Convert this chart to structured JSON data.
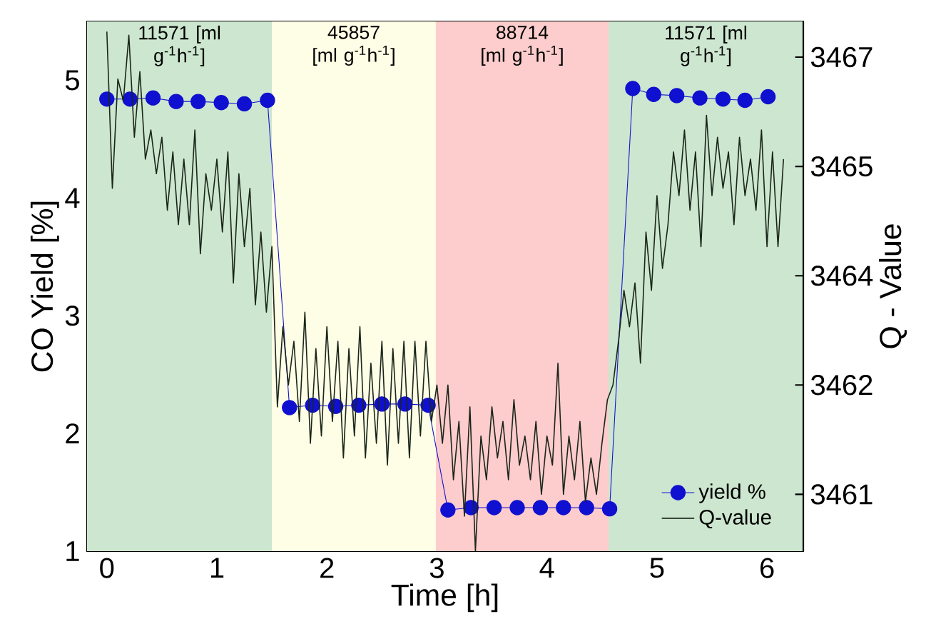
{
  "chart_data": {
    "type": "line",
    "xlabel": "Time [h]",
    "ylabel": "CO Yield [%]",
    "y2label": "Q - Value",
    "xlim": [
      -0.18,
      6.33
    ],
    "xticks": [
      0,
      1,
      2,
      3,
      4,
      5,
      6
    ],
    "ylim": [
      1,
      5.5
    ],
    "yticks": [
      1,
      2,
      3,
      4,
      5
    ],
    "y2lim": [
      3460.12,
      3467.39
    ],
    "y2ticks": [
      {
        "value": 3460.9,
        "label": "3461"
      },
      {
        "value": 3462.4,
        "label": "3462"
      },
      {
        "value": 3463.9,
        "label": "3464"
      },
      {
        "value": 3465.4,
        "label": "3465"
      },
      {
        "value": 3466.9,
        "label": "3467"
      }
    ],
    "legend": "bottom right",
    "bands": [
      {
        "axis": "x",
        "from": -0.18,
        "to": 1.5,
        "label": "11571 [ml g$^{-1}$h$^{-1}$]",
        "color": "#cde6cf"
      },
      {
        "axis": "x",
        "from": 1.5,
        "to": 2.99,
        "label": "45857 [ml g$^{-1}$h$^{-1}$]",
        "color": "#fefee6"
      },
      {
        "axis": "x",
        "from": 2.99,
        "to": 4.56,
        "label": "88714 [ml g$^{-1}$h$^{-1}$]",
        "color": "#fdcccc"
      },
      {
        "axis": "x",
        "from": 4.56,
        "to": 6.33,
        "label": "11571 [ml g$^{-1}$h$^{-1}$]",
        "color": "#cde6cf"
      }
    ],
    "series": [
      {
        "name": "yield %",
        "type": "line",
        "marker": "circle",
        "color": "#1010d0",
        "x": [
          0,
          0.21,
          0.42,
          0.63,
          0.83,
          1.04,
          1.25,
          1.46,
          1.66,
          1.87,
          2.08,
          2.29,
          2.5,
          2.71,
          2.92,
          3.1,
          3.31,
          3.52,
          3.73,
          3.94,
          4.15,
          4.36,
          4.57,
          4.78,
          4.97,
          5.18,
          5.39,
          5.6,
          5.8,
          6.01
        ],
        "values": [
          4.84,
          4.84,
          4.85,
          4.82,
          4.82,
          4.81,
          4.8,
          4.83,
          2.22,
          2.24,
          2.23,
          2.24,
          2.25,
          2.25,
          2.24,
          1.35,
          1.37,
          1.37,
          1.37,
          1.37,
          1.37,
          1.37,
          1.36,
          4.93,
          4.88,
          4.87,
          4.85,
          4.84,
          4.83,
          4.86
        ]
      },
      {
        "name": "Q-value",
        "type": "line",
        "axis": "y2",
        "color": "#1a261a",
        "x": [
          0,
          0.05,
          0.1,
          0.15,
          0.2,
          0.25,
          0.3,
          0.35,
          0.4,
          0.45,
          0.5,
          0.55,
          0.6,
          0.65,
          0.7,
          0.75,
          0.8,
          0.85,
          0.9,
          0.95,
          1.0,
          1.05,
          1.1,
          1.15,
          1.2,
          1.25,
          1.3,
          1.35,
          1.4,
          1.45,
          1.5,
          1.55,
          1.6,
          1.65,
          1.7,
          1.75,
          1.8,
          1.85,
          1.9,
          1.95,
          2.0,
          2.05,
          2.1,
          2.15,
          2.2,
          2.25,
          2.3,
          2.35,
          2.4,
          2.45,
          2.5,
          2.55,
          2.6,
          2.65,
          2.7,
          2.75,
          2.8,
          2.85,
          2.9,
          2.95,
          3.0,
          3.05,
          3.1,
          3.15,
          3.2,
          3.25,
          3.3,
          3.35,
          3.4,
          3.45,
          3.5,
          3.55,
          3.6,
          3.65,
          3.7,
          3.75,
          3.8,
          3.85,
          3.9,
          3.95,
          4.0,
          4.05,
          4.1,
          4.15,
          4.2,
          4.25,
          4.3,
          4.35,
          4.4,
          4.45,
          4.5,
          4.55,
          4.6,
          4.65,
          4.7,
          4.75,
          4.8,
          4.85,
          4.9,
          4.95,
          5.0,
          5.05,
          5.1,
          5.15,
          5.2,
          5.25,
          5.3,
          5.35,
          5.4,
          5.45,
          5.5,
          5.55,
          5.6,
          5.65,
          5.7,
          5.75,
          5.8,
          5.85,
          5.9,
          5.95,
          6.0,
          6.05,
          6.1,
          6.15
        ],
        "values": [
          3467.25,
          3465.1,
          3466.6,
          3466.3,
          3467.2,
          3465.8,
          3466.7,
          3465.5,
          3465.9,
          3465.3,
          3465.8,
          3464.8,
          3465.6,
          3464.6,
          3465.5,
          3464.6,
          3465.9,
          3464.2,
          3465.3,
          3464.8,
          3465.5,
          3464.5,
          3465.6,
          3463.8,
          3465.3,
          3464.3,
          3465.1,
          3463.5,
          3464.5,
          3463.4,
          3464.3,
          3462.1,
          3463.2,
          3462.4,
          3463.0,
          3461.9,
          3463.4,
          3461.6,
          3462.9,
          3461.7,
          3463.2,
          3461.9,
          3463.0,
          3461.4,
          3462.9,
          3461.7,
          3463.2,
          3461.4,
          3462.7,
          3461.6,
          3463.0,
          3461.3,
          3462.9,
          3461.6,
          3463.0,
          3461.4,
          3463.0,
          3461.7,
          3463.0,
          3461.9,
          3462.4,
          3461.6,
          3462.4,
          3461.1,
          3461.9,
          3460.6,
          3462.1,
          3460.12,
          3461.7,
          3461.1,
          3462.1,
          3461.4,
          3461.9,
          3461.1,
          3462.2,
          3461.3,
          3461.7,
          3461.1,
          3461.9,
          3460.9,
          3461.7,
          3461.3,
          3462.7,
          3460.9,
          3461.7,
          3461.1,
          3461.9,
          3460.8,
          3461.4,
          3460.9,
          3461.6,
          3462.2,
          3462.4,
          3463.0,
          3463.7,
          3463.2,
          3463.8,
          3462.7,
          3464.5,
          3463.7,
          3465.0,
          3464.0,
          3464.6,
          3465.6,
          3465.0,
          3465.9,
          3464.8,
          3465.6,
          3464.3,
          3466.1,
          3465.0,
          3465.8,
          3465.1,
          3465.6,
          3464.6,
          3465.8,
          3465.0,
          3465.5,
          3464.8,
          3465.9,
          3464.3,
          3465.6,
          3464.3,
          3465.5
        ]
      }
    ]
  }
}
